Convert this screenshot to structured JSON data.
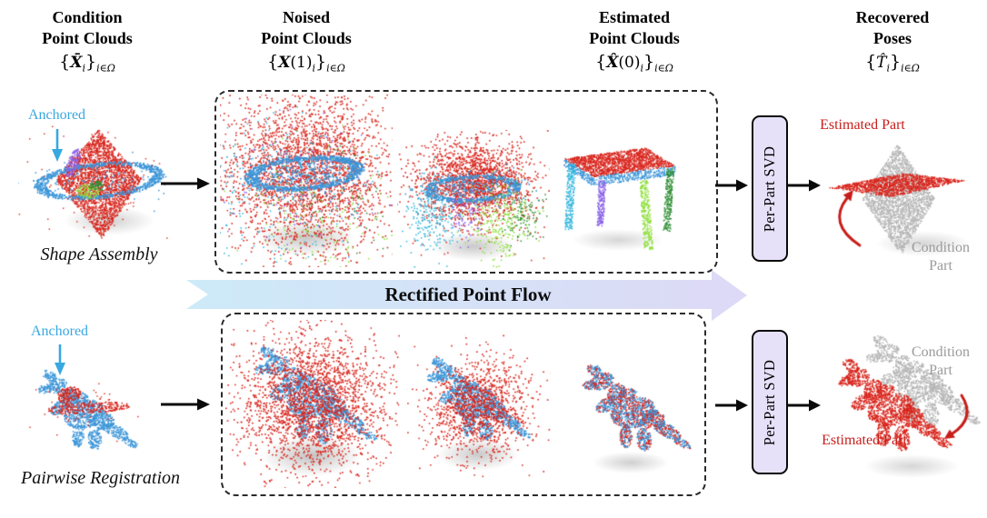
{
  "headers": [
    {
      "line1": "Condition",
      "line2": "Point Clouds",
      "math": {
        "open": "{",
        "var": "X̄",
        "arg": "",
        "sub": "i",
        "close": "}",
        "outsub": "i∈Ω"
      }
    },
    {
      "line1": "Noised",
      "line2": "Point Clouds",
      "math": {
        "open": "{",
        "var": "X",
        "arg": "(1)",
        "sub": "i",
        "close": "}",
        "outsub": "i∈Ω"
      }
    },
    {
      "line1": "Estimated",
      "line2": "Point Clouds",
      "math": {
        "open": "{",
        "var": "X̂",
        "arg": "(0)",
        "sub": "i",
        "close": "}",
        "outsub": "i∈Ω"
      }
    },
    {
      "line1": "Recovered",
      "line2": "Poses",
      "math": {
        "open": "{",
        "var": "T̂",
        "arg": "",
        "sub": "i",
        "close": "}",
        "outsub": "i∈Ω"
      }
    }
  ],
  "banner": {
    "label": "Rectified Point Flow"
  },
  "rows": [
    {
      "task_label": "Shape Assembly",
      "anchored_label": "Anchored",
      "svd_label": "Per-Part SVD",
      "estimated_part_label": "Estimated Part",
      "condition_part_label": "Condition Part"
    },
    {
      "task_label": "Pairwise Registration",
      "anchored_label": "Anchored",
      "svd_label": "Per-Part SVD",
      "estimated_part_label": "Estimated Part",
      "condition_part_label": "Condition Part"
    }
  ],
  "colors": {
    "anchored_blue": "#38a8e0",
    "estimated_red": "#c81e1a",
    "condition_gray": "#9a9a9a",
    "banner_left": "#cdeaf8",
    "banner_right": "#ddd9f6",
    "svd_fill": "#e6e1f9",
    "arrow_black": "#0a0a0a",
    "cloud_red": "#d8251c",
    "cloud_blue": "#3b95d8",
    "cloud_cyan": "#2fb4dc",
    "cloud_lightgreen": "#8ede3c",
    "cloud_darkgreen": "#2f8f34",
    "cloud_purple": "#8a63e8",
    "cloud_gray": "#b5b5b5"
  }
}
